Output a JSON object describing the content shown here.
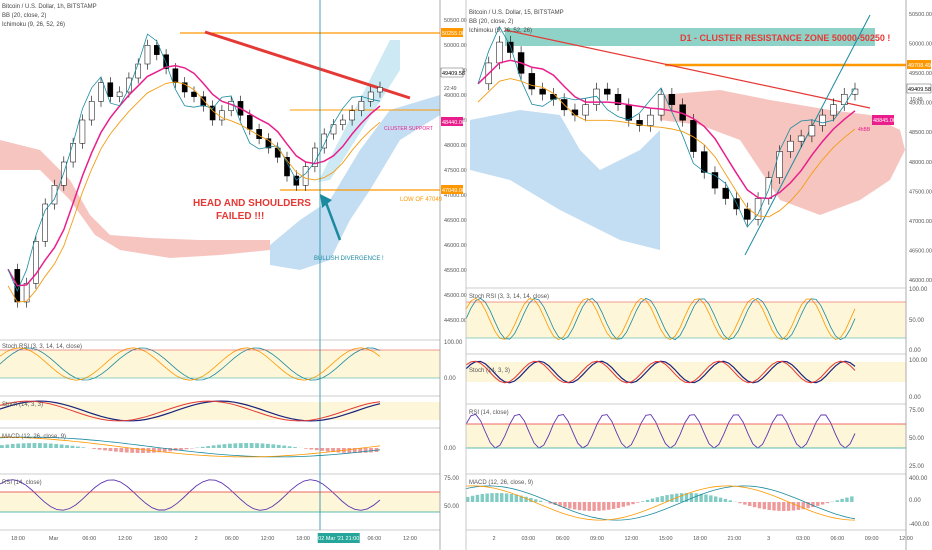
{
  "colors": {
    "bg": "#ffffff",
    "up": "#ffffff",
    "down": "#000000",
    "ma": "#e91e8c",
    "bb": "#1a8aa0",
    "ichi_base": "#f39c12",
    "cloud_red": "#f4b6b0",
    "cloud_blue": "#b8d8f0",
    "trend": "#e53935",
    "cyan": "#26a69a",
    "orange": "#ff9800",
    "band": "#fdf6d8",
    "rsi": "#7e57c2",
    "macd_up": "#26a69a",
    "macd_dn": "#ef5350",
    "zone": "#8fd3c8"
  },
  "left": {
    "header": {
      "title": "Bitcoin / U.S. Dollar, 1h, BITSTAMP",
      "bb": "BB (20, close, 2)",
      "ichimoku": "Ichimoku (9, 26, 52, 26)"
    },
    "price_axis": [
      "50500.00",
      "50000.00",
      "49500.00",
      "49000.00",
      "48500.00",
      "48000.00",
      "47500.00",
      "47000.00",
      "46500.00",
      "46000.00",
      "45500.00",
      "45000.00",
      "44500.00"
    ],
    "badges": {
      "b1": "50255.00",
      "b2": "49409.58",
      "b3": "48440.00",
      "b4": "47049.00"
    },
    "annotations": {
      "hs": "HEAD AND SHOULDERS\nFAILED !!!",
      "bullish": "BULLISH DIVERGENCE !",
      "cluster": "CLUSTER SUPPORT",
      "low": "LOW OF 47049",
      "countdown": "22:49"
    },
    "indicators": {
      "stochrsi": "Stoch RSI (3, 3, 14, 14, close)",
      "stoch": "Stoch (14, 3, 3)",
      "macd": "MACD (12, 26, close, 9)",
      "rsi": "RSI (14, close)"
    },
    "ind_axis": {
      "stochrsi": [
        "100.00",
        "0.00"
      ],
      "macd": [
        "0.00"
      ],
      "rsi": [
        "75.00",
        "50.00"
      ]
    },
    "time_axis": [
      "18:00",
      "Mar",
      "06:00",
      "12:00",
      "18:00",
      "2",
      "06:00",
      "12:00",
      "18:00",
      "02 Mar '21  21:00",
      "06:00",
      "12:00"
    ]
  },
  "right": {
    "header": {
      "title": "Bitcoin / U.S. Dollar, 15, BITSTAMP",
      "bb": "BB (20, close, 2)",
      "ichimoku": "Ichimoku (9, 26, 52, 26)"
    },
    "price_axis": [
      "50500.00",
      "50000.00",
      "49500.00",
      "49000.00",
      "48500.00",
      "48000.00",
      "47500.00",
      "47000.00",
      "46500.00",
      "46000.00"
    ],
    "badges": {
      "b1": "49708.49",
      "b2": "49409.58",
      "b3": "48845.00",
      "b4": "10:49",
      "b5": "4hBB"
    },
    "zone_label": "D1 - CLUSTER RESISTANCE ZONE 50000-50250 !",
    "indicators": {
      "stochrsi": "Stoch RSI (3, 3, 14, 14, close)",
      "stoch": "Stoch (14, 3, 3)",
      "rsi": "RSI (14, close)",
      "macd": "MACD (12, 26, close, 9)"
    },
    "ind_axis": {
      "stochrsi": [
        "100.00",
        "50.00",
        "0.00"
      ],
      "stoch": [
        "100.00",
        "0.00"
      ],
      "rsi": [
        "75.00",
        "50.00",
        "25.00"
      ],
      "macd": [
        "400.00",
        "0.00",
        "-400.00"
      ]
    },
    "time_axis": [
      "2",
      "03:00",
      "06:00",
      "09:00",
      "12:00",
      "15:00",
      "18:00",
      "21:00",
      "3",
      "03:00",
      "06:00",
      "09:00",
      "12:00"
    ]
  },
  "chart_data": [
    {
      "type": "line",
      "title": "Bitcoin / U.S. Dollar, 1h, BITSTAMP",
      "ylim": [
        44200,
        50800
      ],
      "series": [
        {
          "values": [
            45500,
            44800,
            45200,
            46100,
            46900,
            47300,
            47800,
            48200,
            48700,
            49100,
            49500,
            49200,
            49300,
            49600,
            49900,
            50300,
            50100,
            49800,
            49500,
            49300,
            49200,
            49000,
            48700,
            48900,
            49100,
            48800,
            48500,
            48300,
            48100,
            47900,
            47500,
            47300,
            47700,
            48100,
            48400,
            48600,
            48700,
            48900,
            49100,
            49300,
            49400
          ]
        }
      ]
    },
    {
      "type": "line",
      "title": "Bitcoin / U.S. Dollar, 15, BITSTAMP",
      "ylim": [
        45700,
        50800
      ],
      "series": [
        {
          "values": [
            49500,
            49900,
            50300,
            50100,
            49700,
            49400,
            49300,
            49200,
            49000,
            48900,
            49100,
            49400,
            49300,
            49100,
            48800,
            48700,
            48900,
            49300,
            49100,
            48800,
            48200,
            47800,
            47500,
            47300,
            47100,
            46900,
            47300,
            47700,
            48200,
            48400,
            48500,
            48700,
            48900,
            49100,
            49300,
            49400
          ]
        }
      ]
    }
  ]
}
